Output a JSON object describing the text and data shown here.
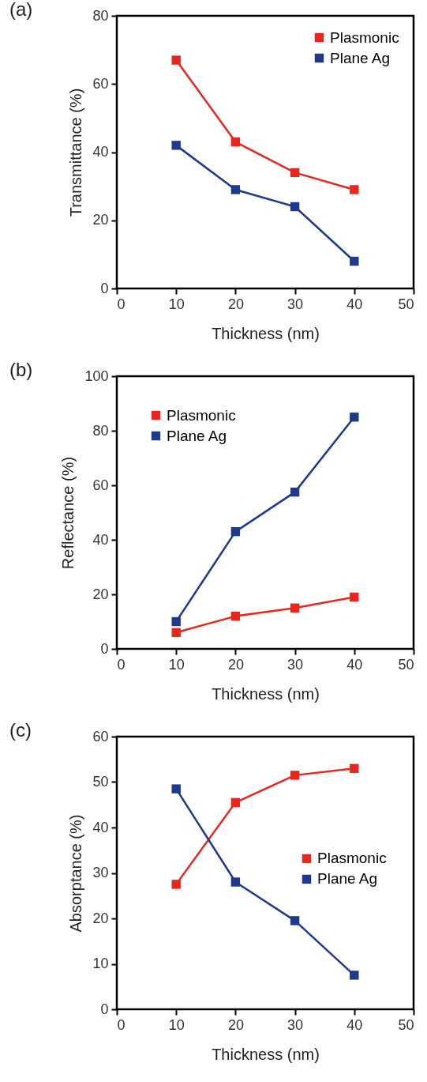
{
  "chart_data": [
    {
      "type": "line",
      "title": "(a)",
      "xlabel": "Thickness (nm)",
      "ylabel": "Transmittance (%)",
      "x": [
        10,
        20,
        30,
        40
      ],
      "series": [
        {
          "name": "Plasmonic",
          "color": "#e8261e",
          "values": [
            67,
            43,
            34,
            29
          ]
        },
        {
          "name": "Plane Ag",
          "color": "#1f3a8c",
          "values": [
            42,
            29,
            24,
            8
          ]
        }
      ],
      "xlim": [
        0,
        50
      ],
      "xticks": [
        0,
        10,
        20,
        30,
        40,
        50
      ],
      "ylim": [
        0,
        80
      ],
      "yticks": [
        0,
        20,
        40,
        60,
        80
      ],
      "legend": "top right",
      "marker": "square",
      "grid": false
    },
    {
      "type": "line",
      "title": "(b)",
      "xlabel": "Thickness (nm)",
      "ylabel": "Reflectance (%)",
      "x": [
        10,
        20,
        30,
        40
      ],
      "series": [
        {
          "name": "Plasmonic",
          "color": "#e8261e",
          "values": [
            6,
            12,
            15,
            19
          ]
        },
        {
          "name": "Plane Ag",
          "color": "#1f3a8c",
          "values": [
            10,
            43,
            57.5,
            85
          ]
        }
      ],
      "xlim": [
        0,
        50
      ],
      "xticks": [
        0,
        10,
        20,
        30,
        40,
        50
      ],
      "ylim": [
        0,
        100
      ],
      "yticks": [
        0,
        20,
        40,
        60,
        80,
        100
      ],
      "legend": "top left",
      "marker": "square",
      "grid": false
    },
    {
      "type": "line",
      "title": "(c)",
      "xlabel": "Thickness (nm)",
      "ylabel": "Absorptance (%)",
      "x": [
        10,
        20,
        30,
        40
      ],
      "series": [
        {
          "name": "Plasmonic",
          "color": "#e8261e",
          "values": [
            27.5,
            45.5,
            51.5,
            53
          ]
        },
        {
          "name": "Plane Ag",
          "color": "#1f3a8c",
          "values": [
            48.5,
            28,
            19.5,
            7.5
          ]
        }
      ],
      "xlim": [
        0,
        50
      ],
      "xticks": [
        0,
        10,
        20,
        30,
        40,
        50
      ],
      "ylim": [
        0,
        60
      ],
      "yticks": [
        0,
        10,
        20,
        30,
        40,
        50,
        60
      ],
      "legend": "right",
      "marker": "square",
      "grid": false
    }
  ]
}
